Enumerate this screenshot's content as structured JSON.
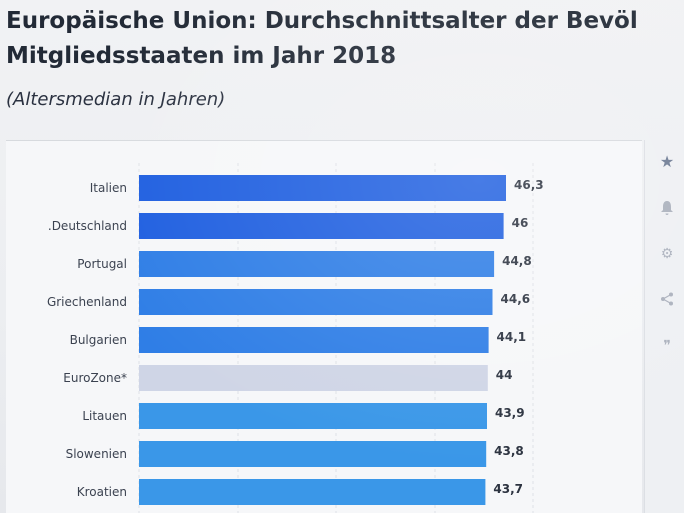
{
  "header": {
    "title_line1": "Europäische Union: Durchschnittsalter der Bevöl",
    "title_line2": "Mitgliedsstaaten im Jahr 2018",
    "subtitle": "(Altersmedian in Jahren)"
  },
  "sidebar": {
    "icons": [
      "star-icon",
      "bell-icon",
      "gear-icon",
      "share-icon",
      "quote-icon"
    ]
  },
  "chart_data": {
    "type": "bar",
    "orientation": "horizontal",
    "categories": [
      ".Deutschland",
      "Italien",
      "Portugal",
      "Griechenland",
      "Bulgarien",
      "EuroZone*",
      "Litauen",
      "Slowenien",
      "Kroatien"
    ],
    "values": [
      46,
      46.3,
      44.8,
      44.6,
      44.1,
      44,
      43.9,
      43.8,
      43.7
    ],
    "value_labels": [
      "46",
      "46,3",
      "44,8",
      "44,6",
      "44,1",
      "44",
      "43,9",
      "43,8",
      "43,7"
    ],
    "order": [
      1,
      0,
      2,
      3,
      4,
      5,
      6,
      7,
      8
    ],
    "xlim": [
      0,
      50
    ],
    "grid": true,
    "colors": {
      "bar_dark": "#1f5fe0",
      "bar_mid": "#2f7ee6",
      "bar_light": "#3a97e8",
      "highlight": "#cfd5e6"
    },
    "highlight_category": "EuroZone*"
  }
}
